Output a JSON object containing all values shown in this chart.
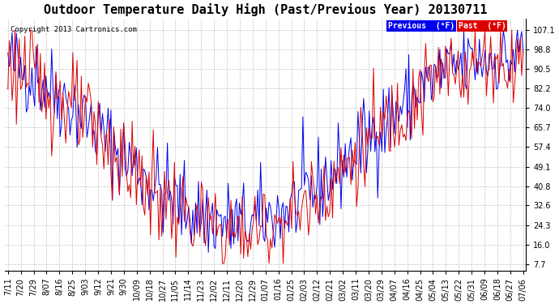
{
  "title": "Outdoor Temperature Daily High (Past/Previous Year) 20130711",
  "copyright": "Copyright 2013 Cartronics.com",
  "yticks": [
    107.1,
    98.8,
    90.5,
    82.2,
    74.0,
    65.7,
    57.4,
    49.1,
    40.8,
    32.6,
    24.3,
    16.0,
    7.7
  ],
  "ylim": [
    5.0,
    112.0
  ],
  "previous_color": "#0000ee",
  "past_color": "#dd0000",
  "background_color": "#ffffff",
  "grid_color": "#aaaaaa",
  "title_fontsize": 11,
  "tick_fontsize": 7,
  "x_labels": [
    "7/11",
    "7/20",
    "7/29",
    "8/07",
    "8/16",
    "8/25",
    "9/03",
    "9/12",
    "9/21",
    "9/30",
    "10/09",
    "10/18",
    "10/27",
    "11/05",
    "11/14",
    "11/23",
    "12/02",
    "12/11",
    "12/20",
    "12/29",
    "01/07",
    "01/16",
    "01/25",
    "02/03",
    "02/12",
    "02/21",
    "03/02",
    "03/11",
    "03/20",
    "03/29",
    "04/07",
    "04/16",
    "04/25",
    "05/04",
    "05/13",
    "05/22",
    "05/31",
    "06/09",
    "06/18",
    "06/27",
    "07/06"
  ],
  "n_points": 366
}
